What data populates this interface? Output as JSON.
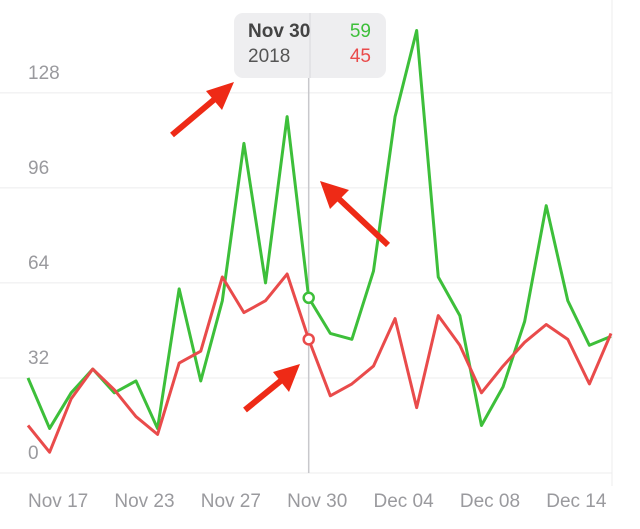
{
  "chart_data": {
    "type": "line",
    "categories": [
      "Nov 17",
      null,
      null,
      null,
      "Nov 23",
      null,
      null,
      null,
      "Nov 27",
      null,
      null,
      null,
      "Nov 30",
      null,
      null,
      null,
      "Dec 04",
      null,
      null,
      null,
      "Dec 08",
      null,
      null,
      null,
      "Dec 14",
      null,
      null,
      null
    ],
    "series": [
      {
        "color": "#3dbf3a",
        "values": [
          32,
          15,
          27,
          35,
          27,
          31,
          15,
          62,
          31,
          58,
          111,
          64,
          120,
          59,
          47,
          45,
          68,
          120,
          149,
          66,
          53,
          16,
          29,
          51,
          90,
          58,
          43,
          46
        ]
      },
      {
        "color": "#e94b4b",
        "values": [
          16,
          7,
          25,
          35,
          28,
          19,
          13,
          37,
          41,
          66,
          54,
          58,
          67,
          45,
          26,
          30,
          36,
          52,
          22,
          53,
          43,
          27,
          36,
          44,
          50,
          45,
          30,
          47
        ]
      }
    ],
    "ylim": [
      0,
      150
    ],
    "yticks": [
      0,
      32,
      64,
      96,
      128
    ],
    "grid": true,
    "tooltip": {
      "date": "Nov 30",
      "year": "2018",
      "index": 13
    }
  }
}
